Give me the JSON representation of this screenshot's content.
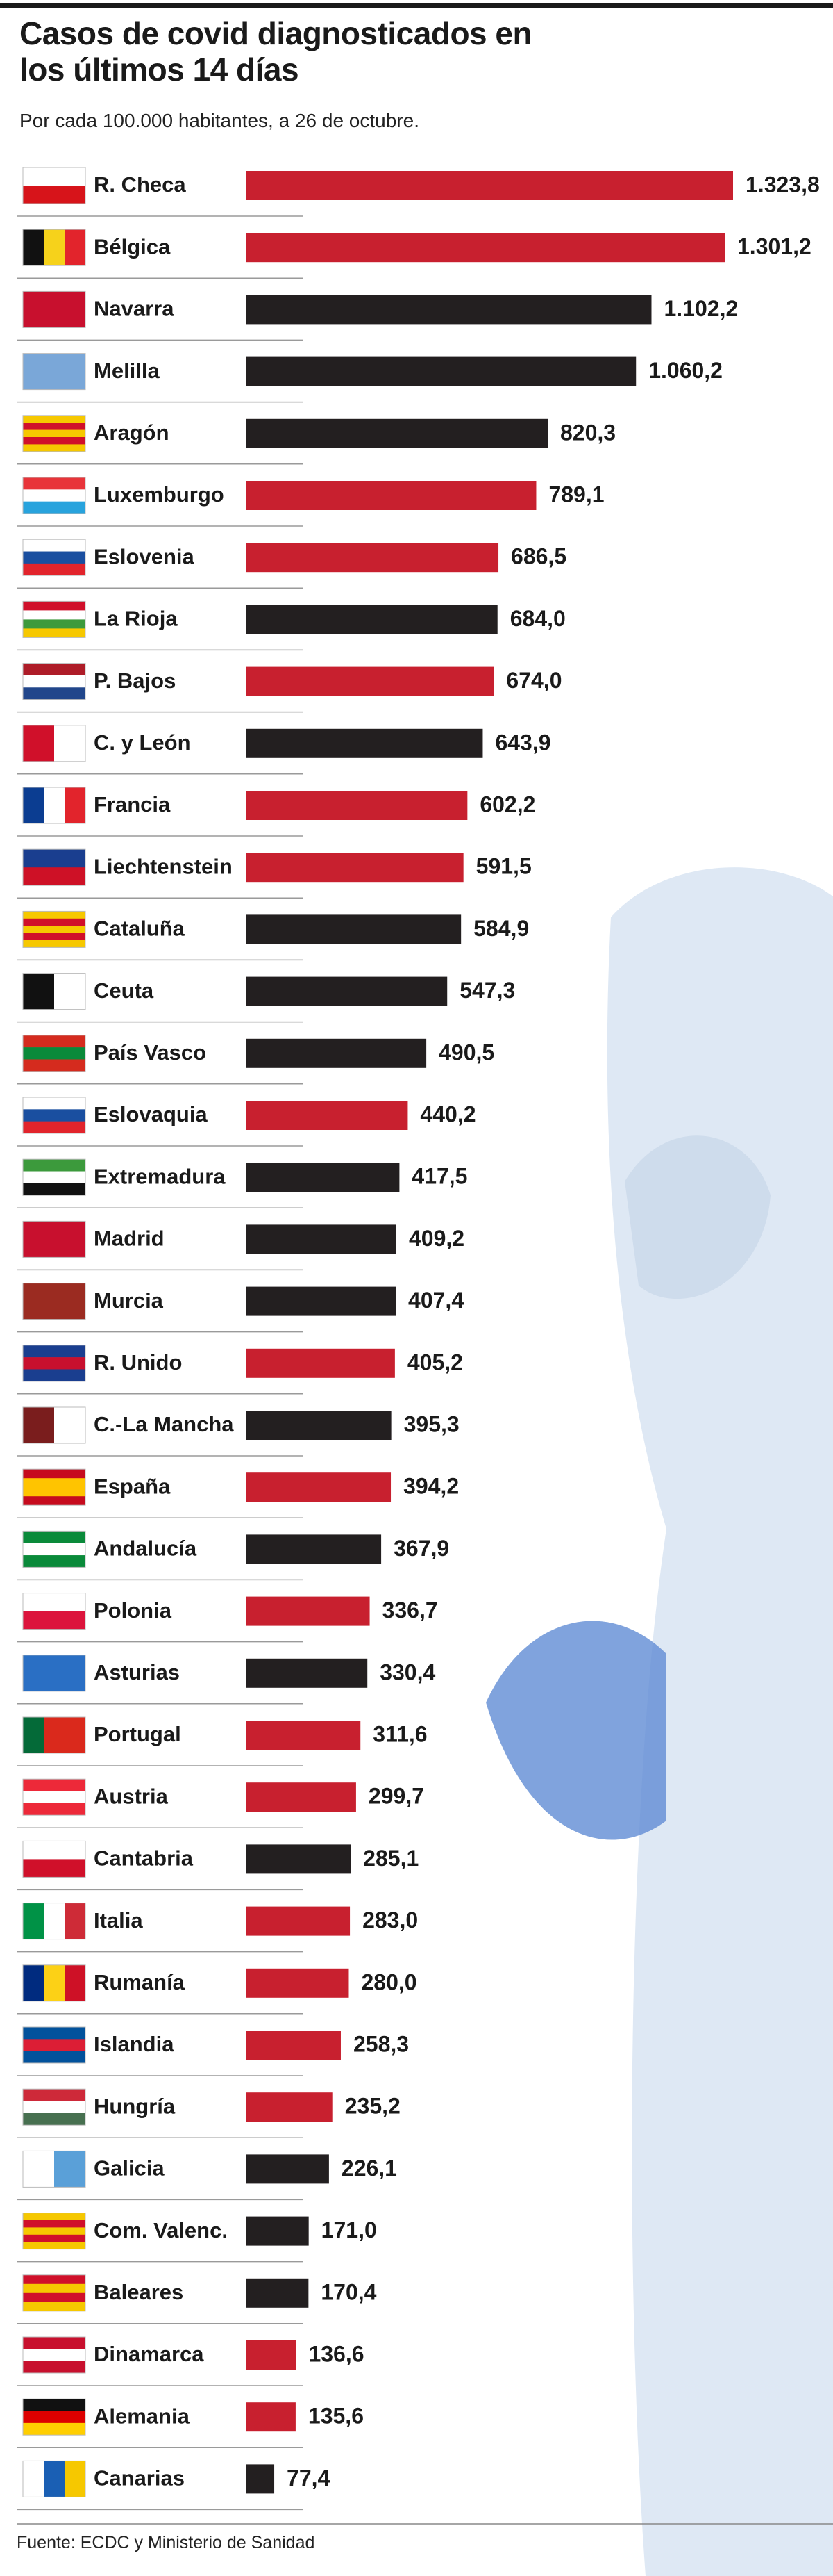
{
  "chart_data": {
    "type": "bar",
    "orientation": "horizontal",
    "title": "Casos de covid diagnosticados en los últimos 14 días",
    "subtitle": "Por cada 100.000 habitantes, a 26 de octubre.",
    "source": "Fuente: ECDC y Ministerio de Sanidad",
    "categories": [
      "R. Checa",
      "Bélgica",
      "Navarra",
      "Melilla",
      "Aragón",
      "Luxemburgo",
      "Eslovenia",
      "La Rioja",
      "P. Bajos",
      "C. y León",
      "Francia",
      "Liechtenstein",
      "Cataluña",
      "Ceuta",
      "País Vasco",
      "Eslovaquia",
      "Extremadura",
      "Madrid",
      "Murcia",
      "R. Unido",
      "C.-La Mancha",
      "España",
      "Andalucía",
      "Polonia",
      "Asturias",
      "Portugal",
      "Austria",
      "Cantabria",
      "Italia",
      "Rumanía",
      "Islandia",
      "Hungría",
      "Galicia",
      "Com. Valenc.",
      "Baleares",
      "Dinamarca",
      "Alemania",
      "Canarias"
    ],
    "values": [
      1323.8,
      1301.2,
      1102.2,
      1060.2,
      820.3,
      789.1,
      686.5,
      684.0,
      674.0,
      643.9,
      602.2,
      591.5,
      584.9,
      547.3,
      490.5,
      440.2,
      417.5,
      409.2,
      407.4,
      405.2,
      395.3,
      394.2,
      367.9,
      336.7,
      330.4,
      311.6,
      299.7,
      285.1,
      283.0,
      280.0,
      258.3,
      235.2,
      226.1,
      171.0,
      170.4,
      136.6,
      135.6,
      77.4
    ],
    "value_labels": [
      "1.323,8",
      "1.301,2",
      "1.102,2",
      "1.060,2",
      "820,3",
      "789,1",
      "686,5",
      "684,0",
      "674,0",
      "643,9",
      "602,2",
      "591,5",
      "584,9",
      "547,3",
      "490,5",
      "440,2",
      "417,5",
      "409,2",
      "407,4",
      "405,2",
      "395,3",
      "394,2",
      "367,9",
      "336,7",
      "330,4",
      "311,6",
      "299,7",
      "285,1",
      "283,0",
      "280,0",
      "258,3",
      "235,2",
      "226,1",
      "171,0",
      "170,4",
      "136,6",
      "135,6",
      "77,4"
    ],
    "colors": [
      "#c8202f",
      "#c8202f",
      "#231f20",
      "#231f20",
      "#231f20",
      "#c8202f",
      "#c8202f",
      "#231f20",
      "#c8202f",
      "#231f20",
      "#c8202f",
      "#c8202f",
      "#231f20",
      "#231f20",
      "#231f20",
      "#c8202f",
      "#231f20",
      "#231f20",
      "#231f20",
      "#c8202f",
      "#231f20",
      "#c8202f",
      "#231f20",
      "#c8202f",
      "#231f20",
      "#c8202f",
      "#c8202f",
      "#231f20",
      "#c8202f",
      "#c8202f",
      "#c8202f",
      "#c8202f",
      "#231f20",
      "#231f20",
      "#231f20",
      "#c8202f",
      "#c8202f",
      "#231f20"
    ]
  }
}
